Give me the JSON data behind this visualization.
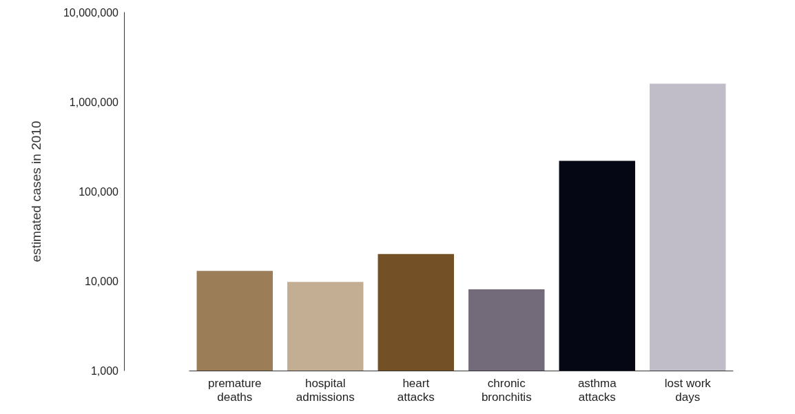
{
  "chart_data": {
    "type": "bar",
    "ylabel": "estimated cases in 2010",
    "categories": [
      "premature deaths",
      "hospital admissions",
      "heart attacks",
      "chronic bronchitis",
      "asthma attacks",
      "lost work days"
    ],
    "values": [
      13000,
      9800,
      20000,
      8100,
      220000,
      1600000
    ],
    "colors": [
      "#9b7e58",
      "#c4ae93",
      "#735026",
      "#736a7a",
      "#050814",
      "#c0bcc8"
    ],
    "log": "y",
    "ylim": [
      1000,
      10000000
    ],
    "yticks": [
      {
        "value": 1000,
        "label": "1,000"
      },
      {
        "value": 10000,
        "label": "10,000"
      },
      {
        "value": 100000,
        "label": "100,000"
      },
      {
        "value": 1000000,
        "label": "1,000,000"
      },
      {
        "value": 10000000,
        "label": "10,000,000"
      }
    ],
    "grid": false
  }
}
